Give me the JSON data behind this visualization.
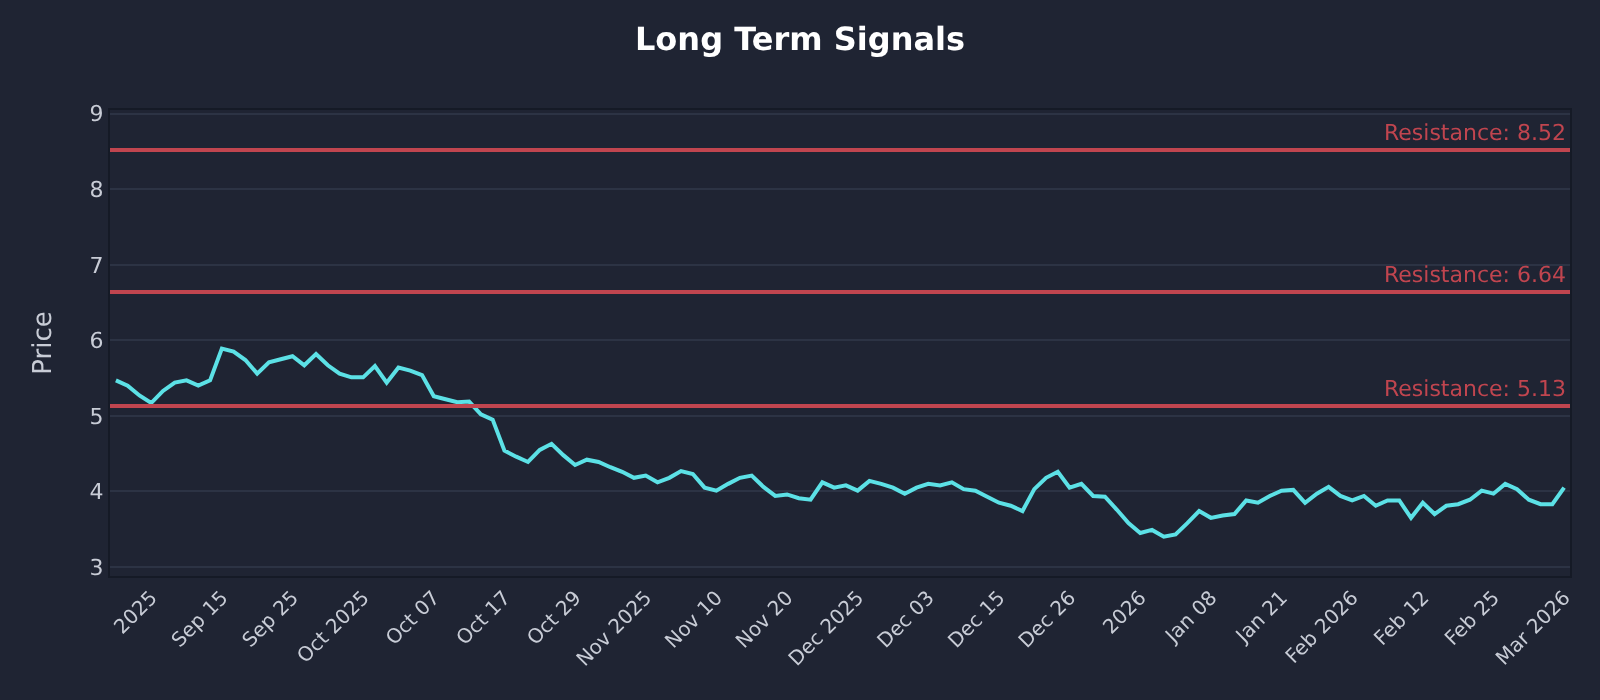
{
  "chart_data": {
    "type": "line",
    "title": "Long Term Signals",
    "ylabel": "Price",
    "categories": [
      null,
      null,
      null,
      "2025",
      null,
      null,
      null,
      null,
      null,
      "Sep 15",
      null,
      null,
      null,
      null,
      null,
      "Sep 25",
      null,
      null,
      null,
      null,
      null,
      "Oct 2025",
      null,
      null,
      null,
      null,
      null,
      "Oct 07",
      null,
      null,
      null,
      null,
      null,
      "Oct 17",
      null,
      null,
      null,
      null,
      null,
      "Oct 29",
      null,
      null,
      null,
      null,
      null,
      "Nov 2025",
      null,
      null,
      null,
      null,
      null,
      "Nov 10",
      null,
      null,
      null,
      null,
      null,
      "Nov 20",
      null,
      null,
      null,
      null,
      null,
      "Dec 2025",
      null,
      null,
      null,
      null,
      null,
      "Dec 03",
      null,
      null,
      null,
      null,
      null,
      "Dec 15",
      null,
      null,
      null,
      null,
      null,
      "Dec 26",
      null,
      null,
      null,
      null,
      null,
      "2026",
      null,
      null,
      null,
      null,
      null,
      "Jan 08",
      null,
      null,
      null,
      null,
      null,
      "Jan 21",
      null,
      null,
      null,
      null,
      null,
      "Feb 2026",
      null,
      null,
      null,
      null,
      null,
      "Feb 12",
      null,
      null,
      null,
      null,
      null,
      "Feb 25",
      null,
      null,
      null,
      null,
      null,
      "Mar 2026"
    ],
    "series": [
      {
        "color": "#5ce1e6",
        "values": [
          5.47,
          5.4,
          5.27,
          5.17,
          5.33,
          5.44,
          5.47,
          5.4,
          5.47,
          5.89,
          5.85,
          5.74,
          5.56,
          5.71,
          5.75,
          5.79,
          5.67,
          5.82,
          5.67,
          5.56,
          5.51,
          5.51,
          5.66,
          5.44,
          5.64,
          5.6,
          5.54,
          5.26,
          5.22,
          5.18,
          5.19,
          5.02,
          4.95,
          4.54,
          4.46,
          4.39,
          4.55,
          4.63,
          4.48,
          4.35,
          4.42,
          4.39,
          4.32,
          4.26,
          4.18,
          4.21,
          4.12,
          4.18,
          4.27,
          4.23,
          4.05,
          4.01,
          4.1,
          4.18,
          4.21,
          4.06,
          3.94,
          3.96,
          3.91,
          3.89,
          4.12,
          4.05,
          4.08,
          4.01,
          4.14,
          4.1,
          4.05,
          3.97,
          4.05,
          4.1,
          4.08,
          4.12,
          4.03,
          4.01,
          3.93,
          3.85,
          3.81,
          3.74,
          4.03,
          4.18,
          4.26,
          4.05,
          4.1,
          3.94,
          3.93,
          3.76,
          3.58,
          3.45,
          3.49,
          3.4,
          3.43,
          3.58,
          3.74,
          3.65,
          3.68,
          3.7,
          3.88,
          3.85,
          3.94,
          4.01,
          4.02,
          3.85,
          3.97,
          4.06,
          3.94,
          3.88,
          3.94,
          3.81,
          3.88,
          3.88,
          3.65,
          3.85,
          3.7,
          3.81,
          3.83,
          3.89,
          4.01,
          3.97,
          4.1,
          4.03,
          3.89,
          3.83,
          3.83,
          4.05
        ]
      }
    ],
    "ylim": [
      2.88,
      9.05
    ],
    "yticks": [
      3,
      4,
      5,
      6,
      7,
      8,
      9
    ],
    "grid": "y",
    "ref_lines": [
      {
        "axis": "y",
        "value": 8.52,
        "label": "Resistance: 8.52",
        "color": "#c0454f"
      },
      {
        "axis": "y",
        "value": 6.64,
        "label": "Resistance: 6.64",
        "color": "#c0454f"
      },
      {
        "axis": "y",
        "value": 5.13,
        "label": "Resistance: 5.13",
        "color": "#c0454f"
      }
    ]
  }
}
